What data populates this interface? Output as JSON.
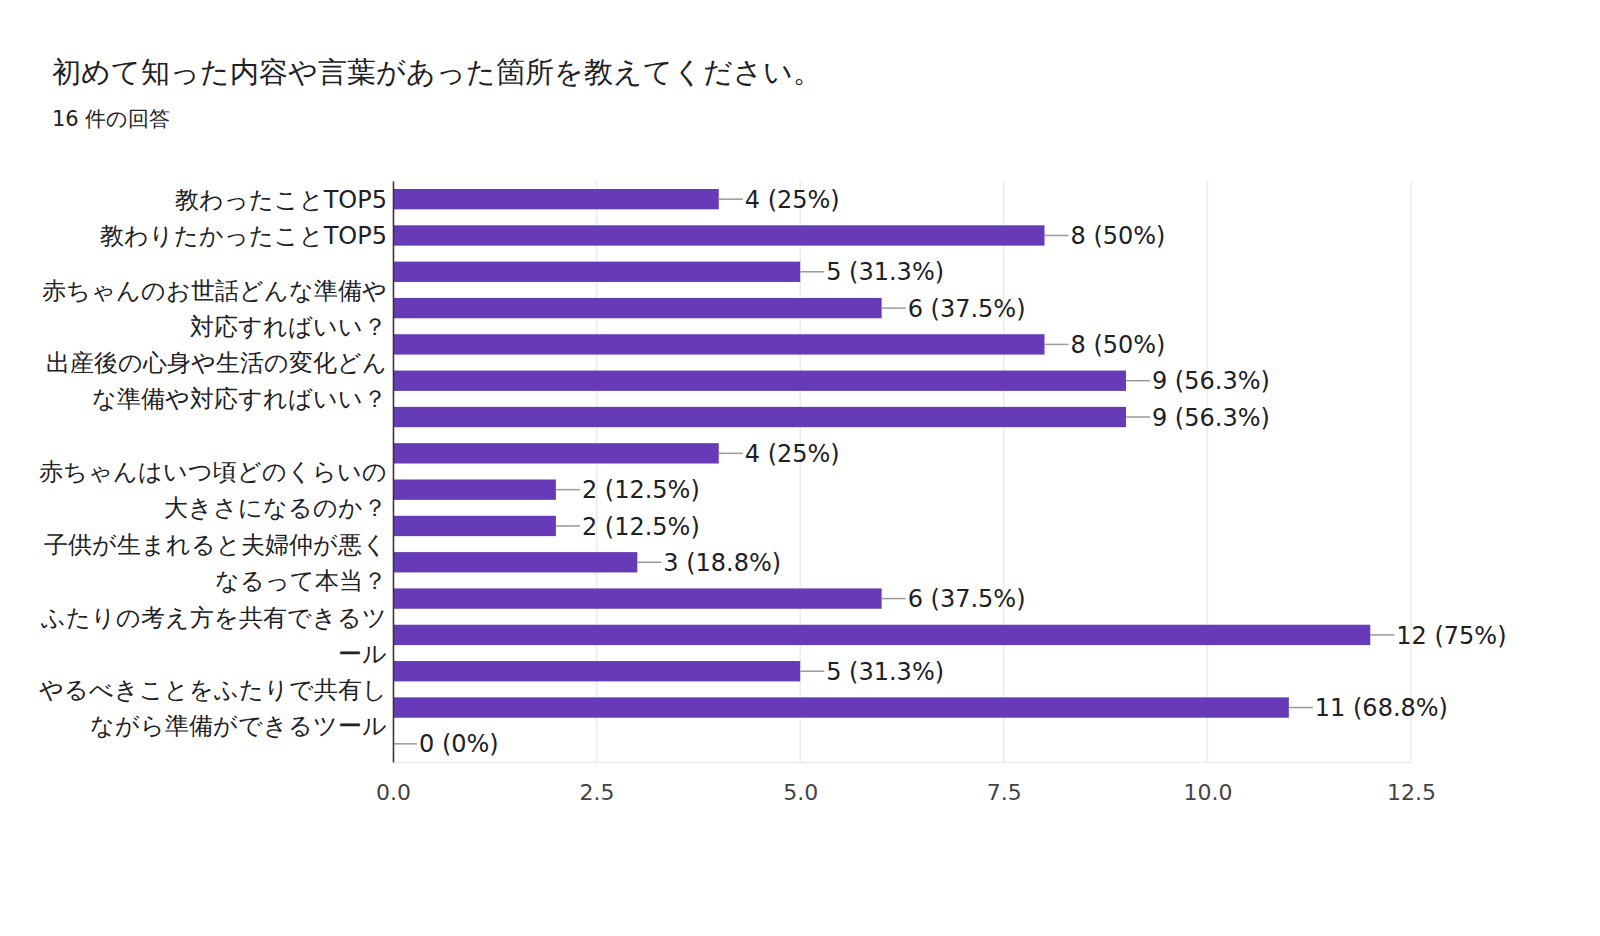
{
  "chart_data": {
    "type": "bar",
    "orientation": "horizontal",
    "title": "初めて知った内容や言葉があった箇所を教えてください。",
    "subtitle": "16 件の回答",
    "categories": [
      "教わったことTOP5",
      "教わりたかったことTOP5",
      null,
      "赤ちゃんのお世話どんな準備や対応すればいい？",
      null,
      "出産後の心身や生活の変化どんな準備や対応すればいい？",
      null,
      null,
      "赤ちゃんはいつ頃どのくらいの大きさになるのか？",
      null,
      "子供が生まれると夫婦仲が悪くなるって本当？",
      null,
      "ふたりの考え方を共有できるツール",
      null,
      "やるべきことをふたりで共有しながら準備ができるツール",
      null
    ],
    "values": [
      4,
      8,
      5,
      6,
      8,
      9,
      9,
      4,
      2,
      2,
      3,
      6,
      12,
      5,
      11,
      0
    ],
    "value_labels": [
      "4 (25%)",
      "8 (50%)",
      "5 (31.3%)",
      "6 (37.5%)",
      "8 (50%)",
      "9 (56.3%)",
      "9 (56.3%)",
      "4 (25%)",
      "2 (12.5%)",
      "2 (12.5%)",
      "3 (18.8%)",
      "6 (37.5%)",
      "12 (75%)",
      "5 (31.3%)",
      "11 (68.8%)",
      "0 (0%)"
    ],
    "color": "#673ab7",
    "xlim": [
      0,
      12.5
    ],
    "xticks": [
      {
        "value": 0,
        "label": "0.0"
      },
      2.5,
      {
        "value": 5,
        "label": "5.0"
      },
      7.5,
      {
        "value": 10,
        "label": "10.0"
      },
      12.5
    ],
    "grid": true,
    "data_labels": true
  }
}
